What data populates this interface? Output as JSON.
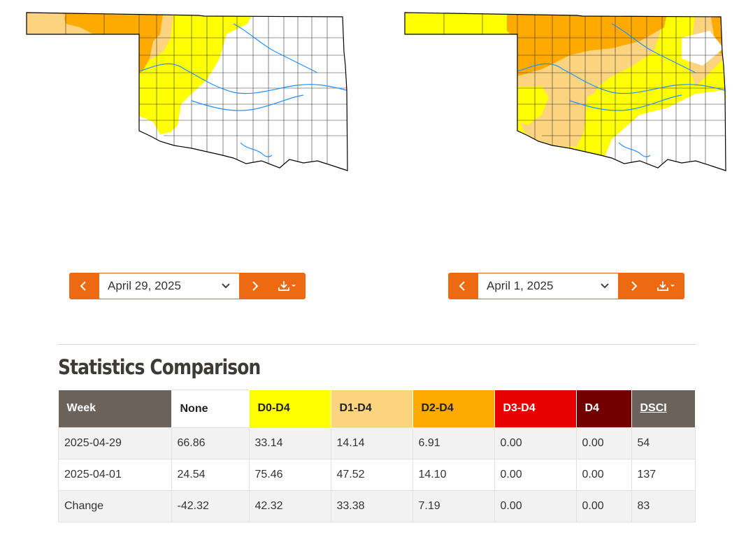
{
  "maps": [
    {
      "name": "left",
      "selected_date": "April 29, 2025",
      "colors": {
        "none": "#ffffff",
        "d0": "#ffff00",
        "d1": "#fcd37f",
        "d2": "#ffaa00",
        "border": "#000000",
        "county": "#333333",
        "river": "#1e90ff"
      }
    },
    {
      "name": "right",
      "selected_date": "April 1, 2025",
      "colors": {
        "none": "#ffffff",
        "d0": "#ffff00",
        "d1": "#fcd37f",
        "d2": "#ffaa00",
        "border": "#000000",
        "county": "#333333",
        "river": "#1e90ff"
      }
    }
  ],
  "controls": {
    "icons": {
      "prev": "chevron-left-icon",
      "next": "chevron-right-icon",
      "download": "download-icon",
      "dropdown": "chevron-down-icon"
    },
    "accent": "#ee6a12"
  },
  "stats": {
    "title": "Statistics Comparison",
    "headers": [
      "Week",
      "None",
      "D0-D4",
      "D1-D4",
      "D2-D4",
      "D3-D4",
      "D4",
      "DSCI"
    ],
    "header_colors": [
      "#6b625c",
      "#ffffff",
      "#ffff00",
      "#fcd37f",
      "#ffaa00",
      "#e60000",
      "#730000",
      "#6b625c"
    ],
    "rows": [
      [
        "2025-04-29",
        "66.86",
        "33.14",
        "14.14",
        "6.91",
        "0.00",
        "0.00",
        "54"
      ],
      [
        "2025-04-01",
        "24.54",
        "75.46",
        "47.52",
        "14.10",
        "0.00",
        "0.00",
        "137"
      ],
      [
        "Change",
        "-42.32",
        "42.32",
        "33.38",
        "7.19",
        "0.00",
        "0.00",
        "83"
      ]
    ]
  }
}
